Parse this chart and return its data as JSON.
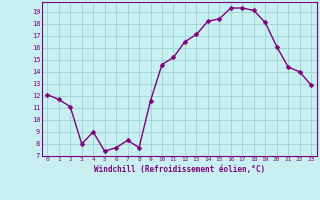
{
  "x": [
    0,
    1,
    2,
    3,
    4,
    5,
    6,
    7,
    8,
    9,
    10,
    11,
    12,
    13,
    14,
    15,
    16,
    17,
    18,
    19,
    20,
    21,
    22,
    23
  ],
  "y": [
    12.1,
    11.7,
    11.1,
    8.0,
    9.0,
    7.4,
    7.7,
    8.3,
    7.7,
    11.6,
    14.6,
    15.2,
    16.5,
    17.1,
    18.2,
    18.4,
    19.3,
    19.3,
    19.1,
    18.1,
    16.1,
    14.4,
    14.0,
    12.9
  ],
  "color": "#800080",
  "bg_color": "#c8f0f0",
  "grid_color": "#a0d8d8",
  "xlabel": "Windchill (Refroidissement éolien,°C)",
  "ylim": [
    7,
    19.8
  ],
  "xlim": [
    -0.5,
    23.5
  ],
  "yticks": [
    7,
    8,
    9,
    10,
    11,
    12,
    13,
    14,
    15,
    16,
    17,
    18,
    19
  ],
  "xticks": [
    0,
    1,
    2,
    3,
    4,
    5,
    6,
    7,
    8,
    9,
    10,
    11,
    12,
    13,
    14,
    15,
    16,
    17,
    18,
    19,
    20,
    21,
    22,
    23
  ],
  "line_width": 1.0,
  "marker_size": 2.5
}
